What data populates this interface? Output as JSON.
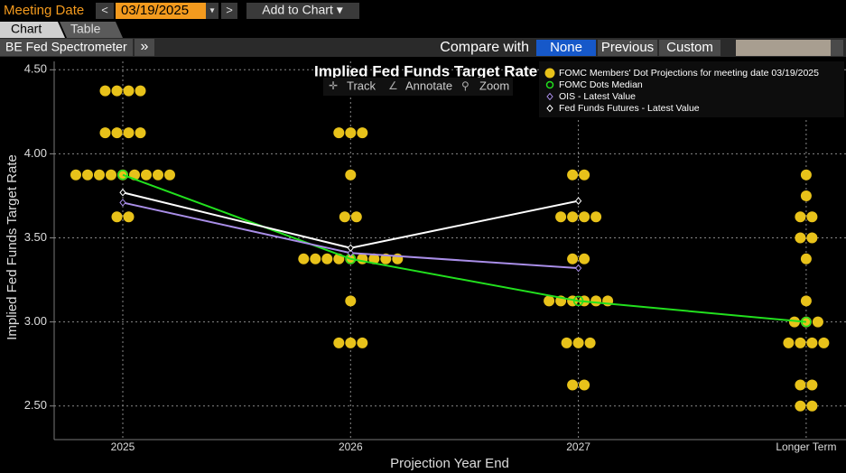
{
  "toolbar": {
    "meeting_date_label": "Meeting Date",
    "prev": "<",
    "date": "03/19/2025",
    "dropdown": "▾",
    "next": ">",
    "add_to_chart": "Add to Chart ▾"
  },
  "tabs": [
    "Chart",
    "Table"
  ],
  "panel": {
    "name": "BE Fed Spectrometer",
    "expand": "»",
    "compare_label": "Compare with",
    "compare_options": [
      "None",
      "Previous",
      "Custom"
    ]
  },
  "chart_tools": [
    "Track",
    "Annotate",
    "Zoom"
  ],
  "chart_data": {
    "type": "scatter",
    "title": "Implied Fed Funds Target Rate",
    "x_label": "Projection Year End",
    "y_label": "Implied Fed Funds Target Rate",
    "categories": [
      "2025",
      "2026",
      "2027",
      "Longer Term"
    ],
    "ylim": [
      2.3,
      4.55
    ],
    "yticks": [
      {
        "value": 2.5,
        "label": "2.50"
      },
      {
        "value": 3,
        "label": "3.00"
      },
      {
        "value": 3.5,
        "label": "3.50"
      },
      {
        "value": 4,
        "label": "4.00"
      },
      {
        "value": 4.5,
        "label": "4.50"
      }
    ],
    "grid": true,
    "dots": {
      "name": "FOMC Members' Dot Projections for meeting date 03/19/2025",
      "color": "#e8c21a",
      "values": [
        [
          4.375,
          4.375,
          4.375,
          4.375,
          4.125,
          4.125,
          4.125,
          4.125,
          3.875,
          3.875,
          3.875,
          3.875,
          3.875,
          3.875,
          3.875,
          3.875,
          3.875,
          3.625,
          3.625
        ],
        [
          4.125,
          4.125,
          4.125,
          3.875,
          3.625,
          3.625,
          3.375,
          3.375,
          3.375,
          3.375,
          3.375,
          3.375,
          3.375,
          3.375,
          3.375,
          3.125,
          2.875,
          2.875,
          2.875
        ],
        [
          3.875,
          3.875,
          3.625,
          3.625,
          3.625,
          3.625,
          3.375,
          3.375,
          3.125,
          3.125,
          3.125,
          3.125,
          3.125,
          3.125,
          2.875,
          2.875,
          2.875,
          2.625,
          2.625
        ],
        [
          3.875,
          3.75,
          3.625,
          3.625,
          3.5,
          3.5,
          3.375,
          3.125,
          3.0,
          3.0,
          3.0,
          2.875,
          2.875,
          2.875,
          2.875,
          2.625,
          2.625,
          2.5,
          2.5
        ]
      ]
    },
    "series": [
      {
        "name": "FOMC Dots Median",
        "color": "#22e01e",
        "values": [
          3.875,
          3.375,
          3.125,
          3.0
        ]
      },
      {
        "name": "OIS - Latest Value",
        "color": "#a98ee8",
        "values": [
          3.71,
          3.41,
          3.32,
          null
        ]
      },
      {
        "name": "Fed Funds Futures - Latest Value",
        "color": "#ffffff",
        "values": [
          3.77,
          3.44,
          3.72,
          null
        ]
      }
    ]
  }
}
